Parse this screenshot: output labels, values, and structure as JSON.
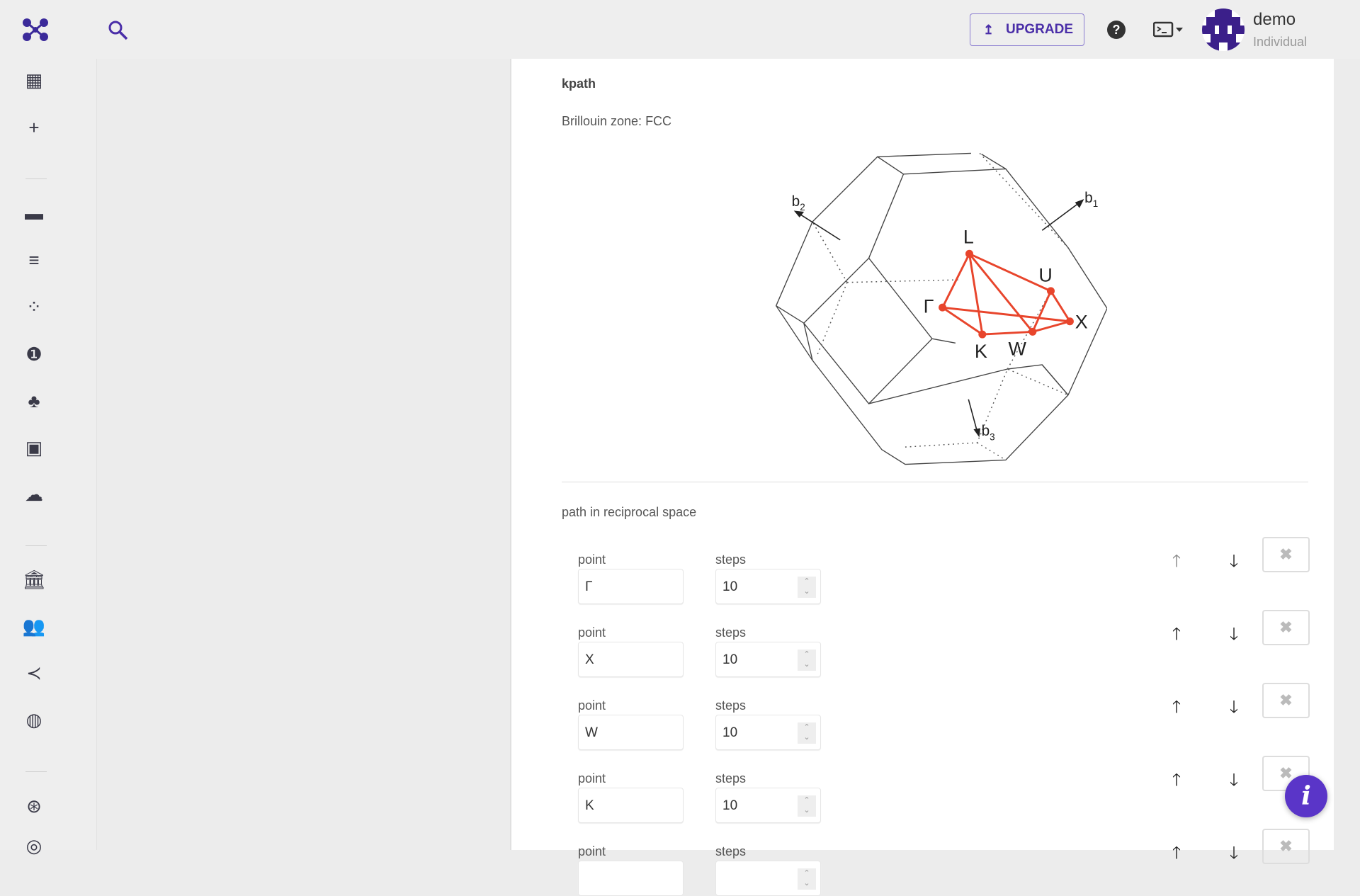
{
  "header": {
    "upgrade_label": "UPGRADE",
    "user_name": "demo",
    "user_plan": "Individual"
  },
  "sidebar": {
    "items": [
      "dashboard-icon",
      "add-icon",
      "folder-icon",
      "jobs-icon",
      "materials-icon",
      "workflows-icon",
      "projects-icon",
      "dropbox-icon",
      "upload-icon",
      "organization-icon",
      "teams-icon",
      "shared-icon",
      "explore-icon",
      "help-support-icon",
      "settings-icon"
    ]
  },
  "main": {
    "section_title": "kpath",
    "bz_label": "Brillouin zone: FCC",
    "bz_points": [
      "L",
      "U",
      "Γ",
      "X",
      "K",
      "W"
    ],
    "bz_vectors": [
      "b",
      "1",
      "b",
      "2",
      "b",
      "3"
    ],
    "path_title": "path in reciprocal space",
    "point_label": "point",
    "steps_label": "steps",
    "rows": [
      {
        "point": "Γ",
        "steps": "10"
      },
      {
        "point": "X",
        "steps": "10"
      },
      {
        "point": "W",
        "steps": "10"
      },
      {
        "point": "K",
        "steps": "10"
      },
      {
        "point": "",
        "steps": ""
      }
    ]
  },
  "colors": {
    "accent": "#4a2ea8",
    "path": "#e8452c"
  }
}
